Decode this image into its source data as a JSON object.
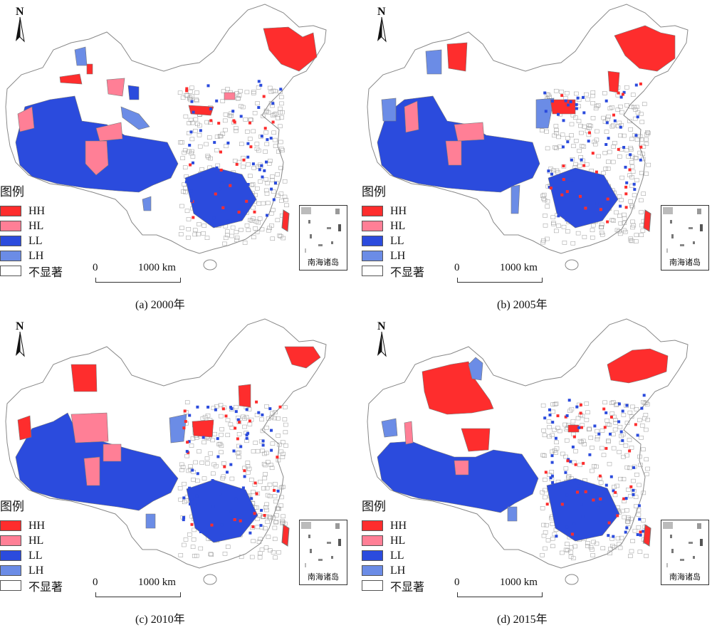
{
  "legend": {
    "title": "图例",
    "items": [
      {
        "key": "HH",
        "label": "HH",
        "color": "#fe2d2d"
      },
      {
        "key": "HL",
        "label": "HL",
        "color": "#ff7f96"
      },
      {
        "key": "LL",
        "label": "LL",
        "color": "#2b4bdd"
      },
      {
        "key": "LH",
        "label": "LH",
        "color": "#6b8ce6"
      },
      {
        "key": "NS",
        "label": "不显著",
        "color": "#ffffff"
      }
    ]
  },
  "north_label": "N",
  "scale": {
    "zero": "0",
    "distance": "1000 km"
  },
  "inset_label": "南海诸岛",
  "panels": [
    {
      "id": "a",
      "caption": "(a) 2000年"
    },
    {
      "id": "b",
      "caption": "(b) 2005年"
    },
    {
      "id": "c",
      "caption": "(c) 2010年"
    },
    {
      "id": "d",
      "caption": "(d) 2015年"
    }
  ]
}
